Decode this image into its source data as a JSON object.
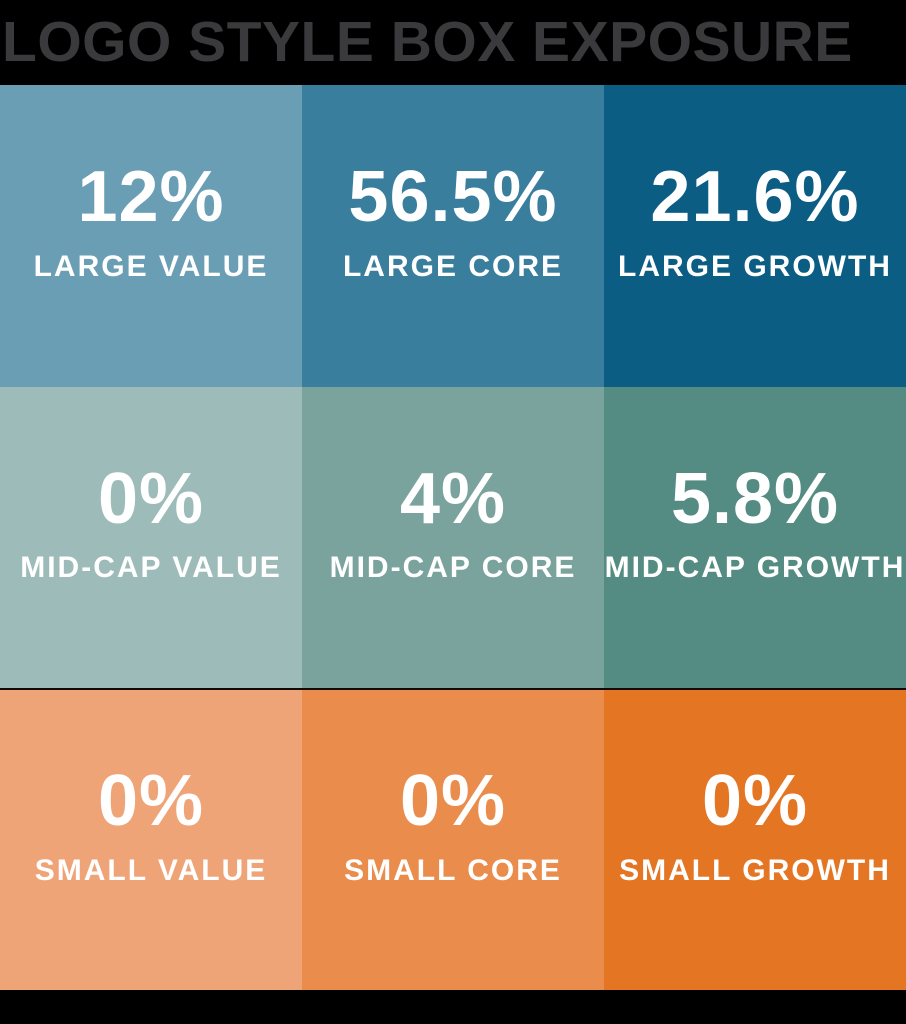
{
  "title": "LOGO STYLE BOX EXPOSURE",
  "colors": {
    "page_background": "#000000",
    "title_text": "#3a3a3c",
    "cell_text": "#ffffff",
    "row_divider": "#120a02"
  },
  "grid": {
    "cells": [
      {
        "value": "12%",
        "label": "LARGE VALUE",
        "color": "#6a9eb4"
      },
      {
        "value": "56.5%",
        "label": "LARGE CORE",
        "color": "#397e9d"
      },
      {
        "value": "21.6%",
        "label": "LARGE GROWTH",
        "color": "#0b5d84"
      },
      {
        "value": "0%",
        "label": "MID-CAP VALUE",
        "color": "#9dbbb8"
      },
      {
        "value": "4%",
        "label": "MID-CAP CORE",
        "color": "#7aa39e"
      },
      {
        "value": "5.8%",
        "label": "MID-CAP GROWTH",
        "color": "#548c83"
      },
      {
        "value": "0%",
        "label": "SMALL VALUE",
        "color": "#efa478"
      },
      {
        "value": "0%",
        "label": "SMALL CORE",
        "color": "#ea8c4c"
      },
      {
        "value": "0%",
        "label": "SMALL GROWTH",
        "color": "#e47523"
      }
    ]
  },
  "chart_data": {
    "type": "heatmap",
    "title": "LOGO STYLE BOX EXPOSURE",
    "rows": [
      "LARGE",
      "MID-CAP",
      "SMALL"
    ],
    "columns": [
      "VALUE",
      "CORE",
      "GROWTH"
    ],
    "values": [
      [
        12,
        56.5,
        21.6
      ],
      [
        0,
        4,
        5.8
      ],
      [
        0,
        0,
        0
      ]
    ],
    "unit": "%",
    "cell_colors": [
      [
        "#6a9eb4",
        "#397e9d",
        "#0b5d84"
      ],
      [
        "#9dbbb8",
        "#7aa39e",
        "#548c83"
      ],
      [
        "#efa478",
        "#ea8c4c",
        "#e47523"
      ]
    ],
    "legend": "none",
    "layout": "3x3 equity style box; each cell shows exposure percent above its row-column label; blue shades = large cap row, teal shades = mid cap row, orange shades = small cap row; shade darkens from value to growth"
  }
}
